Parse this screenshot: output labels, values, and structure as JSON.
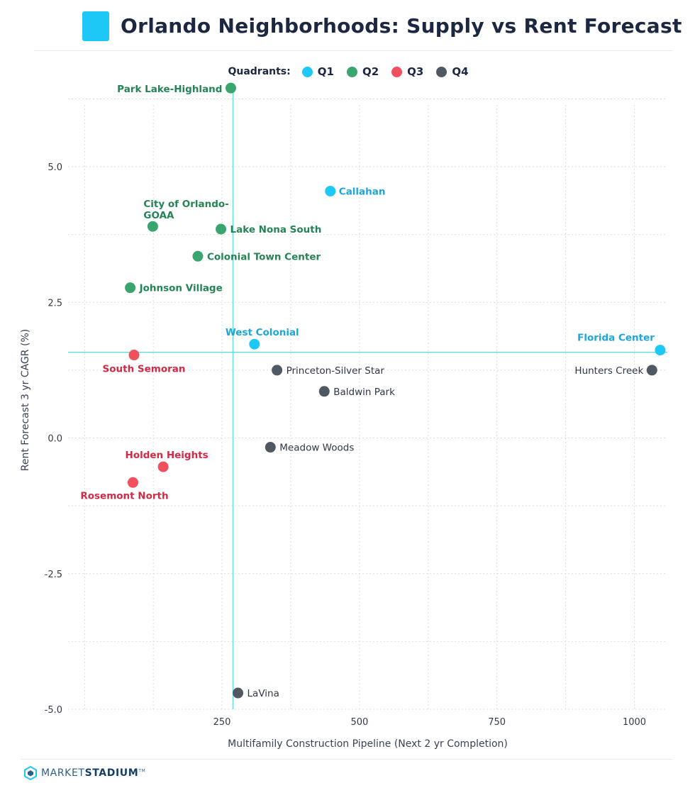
{
  "title": "Orlando Neighborhoods: Supply vs Rent Forecast",
  "brand": {
    "name_light": "MARKET",
    "name_bold": "STADIUM",
    "mark": "TM"
  },
  "legend": {
    "title": "Quadrants:",
    "items": [
      {
        "label": "Q1",
        "color": "#1ec8f6"
      },
      {
        "label": "Q2",
        "color": "#3aa56e"
      },
      {
        "label": "Q3",
        "color": "#f0505e"
      },
      {
        "label": "Q4",
        "color": "#505863"
      }
    ]
  },
  "colors": {
    "accent": "#1ec8f6",
    "reference_line": "#5fdbd8",
    "grid": "#d9dde3"
  },
  "chart_data": {
    "type": "scatter",
    "title": "Orlando Neighborhoods: Supply vs Rent Forecast",
    "xlabel": "Multifamily Construction Pipeline (Next 2 yr Completion)",
    "ylabel": "Rent Forecast 3 yr CAGR (%)",
    "xlim": [
      -30,
      1060
    ],
    "ylim": [
      -5.0,
      6.4
    ],
    "xticks": [
      250,
      500,
      750,
      1000
    ],
    "yticks": [
      -5.0,
      -2.5,
      0.0,
      2.5,
      5.0
    ],
    "xtick_labels": [
      "250",
      "500",
      "750",
      "1000"
    ],
    "ytick_labels": [
      "-5.0",
      "-2.5",
      "0.0",
      "2.5",
      "5.0"
    ],
    "grid": true,
    "legend_position": "top-center",
    "reference_lines": {
      "x": 270,
      "y": 1.58
    },
    "series": [
      {
        "name": "Q1",
        "color": "#1ec8f6",
        "points": [
          {
            "label": "Callahan",
            "x": 447,
            "y": 4.55
          },
          {
            "label": "West Colonial",
            "x": 309,
            "y": 1.73
          },
          {
            "label": "Florida Center",
            "x": 1047,
            "y": 1.62
          }
        ]
      },
      {
        "name": "Q2",
        "color": "#3aa56e",
        "points": [
          {
            "label": "Park Lake-Highland",
            "x": 266,
            "y": 6.45
          },
          {
            "label": "City of Orlando-GOAA",
            "x": 124,
            "y": 3.9
          },
          {
            "label": "Lake Nona South",
            "x": 248,
            "y": 3.85
          },
          {
            "label": "Colonial Town Center",
            "x": 206,
            "y": 3.35
          },
          {
            "label": "Johnson Village",
            "x": 83,
            "y": 2.77
          }
        ]
      },
      {
        "name": "Q3",
        "color": "#f0505e",
        "points": [
          {
            "label": "South Semoran",
            "x": 90,
            "y": 1.53
          },
          {
            "label": "Holden Heights",
            "x": 143,
            "y": -0.53
          },
          {
            "label": "Rosemont North",
            "x": 88,
            "y": -0.82
          }
        ]
      },
      {
        "name": "Q4",
        "color": "#505863",
        "points": [
          {
            "label": "Princeton-Silver Star",
            "x": 350,
            "y": 1.25
          },
          {
            "label": "Hunters Creek",
            "x": 1032,
            "y": 1.25
          },
          {
            "label": "Baldwin Park",
            "x": 436,
            "y": 0.86
          },
          {
            "label": "Meadow Woods",
            "x": 338,
            "y": -0.17
          },
          {
            "label": "LaVina",
            "x": 279,
            "y": -4.7
          }
        ]
      }
    ]
  }
}
